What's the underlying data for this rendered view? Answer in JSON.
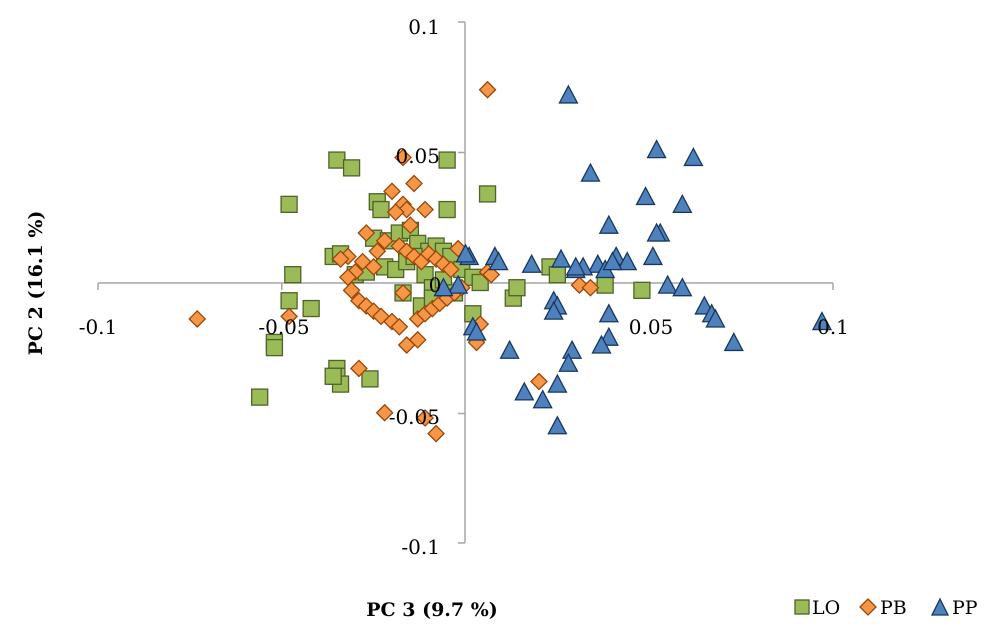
{
  "chart_data": {
    "type": "scatter",
    "xlabel": "PC 3 (9.7 %)",
    "ylabel": "PC 2 (16.1 %)",
    "xlim": [
      -0.1,
      0.1
    ],
    "ylim": [
      -0.1,
      0.1
    ],
    "x_ticks": [
      "-0.1",
      "-0.05",
      "0",
      "0.05",
      "0.1"
    ],
    "y_ticks": [
      "0.1",
      "0.05",
      "0",
      "-0.05",
      "-0.1"
    ],
    "grid": false,
    "legend_position": "bottom-right",
    "series": [
      {
        "name": "LO",
        "marker": "square",
        "color": "#9bbb59",
        "edge_color": "#4f6228",
        "x": [
          -0.035,
          -0.031,
          -0.005,
          -0.048,
          -0.024,
          -0.023,
          -0.005,
          0.006,
          -0.047,
          -0.048,
          -0.042,
          -0.036,
          -0.034,
          -0.025,
          -0.021,
          -0.018,
          -0.015,
          -0.013,
          -0.01,
          -0.008,
          -0.006,
          -0.004,
          -0.001,
          0.002,
          -0.03,
          -0.027,
          -0.022,
          -0.019,
          -0.016,
          -0.014,
          -0.011,
          -0.009,
          -0.006,
          -0.003,
          0.004,
          -0.052,
          -0.052,
          -0.035,
          -0.035,
          -0.034,
          -0.026,
          -0.036,
          -0.056,
          -0.017,
          -0.012,
          -0.009,
          0.002,
          0.013,
          0.014,
          0.023,
          0.025,
          0.038,
          0.048
        ],
        "y": [
          0.047,
          0.044,
          0.047,
          0.03,
          0.031,
          0.028,
          0.028,
          0.034,
          0.003,
          -0.007,
          -0.01,
          0.01,
          0.011,
          0.017,
          0.016,
          0.019,
          0.02,
          0.015,
          0.012,
          0.014,
          0.012,
          0.01,
          0.005,
          0.002,
          0.003,
          0.004,
          0.006,
          0.005,
          0.008,
          0.01,
          0.003,
          -0.002,
          0.001,
          -0.004,
          0.0,
          -0.023,
          -0.025,
          -0.033,
          -0.036,
          -0.039,
          -0.037,
          -0.036,
          -0.044,
          -0.004,
          -0.009,
          -0.006,
          -0.012,
          -0.006,
          -0.002,
          0.006,
          0.003,
          -0.001,
          -0.003
        ]
      },
      {
        "name": "PB",
        "marker": "diamond",
        "color": "#f79646",
        "edge_color": "#984807",
        "x": [
          0.006,
          -0.017,
          -0.014,
          -0.02,
          -0.017,
          -0.016,
          -0.019,
          -0.015,
          -0.011,
          -0.027,
          -0.022,
          -0.018,
          -0.016,
          -0.014,
          -0.012,
          -0.01,
          -0.008,
          -0.006,
          -0.004,
          -0.002,
          -0.024,
          -0.028,
          -0.03,
          -0.032,
          -0.031,
          -0.029,
          -0.027,
          -0.025,
          -0.023,
          -0.02,
          -0.018,
          -0.013,
          -0.011,
          -0.009,
          -0.007,
          -0.005,
          -0.003,
          -0.001,
          -0.025,
          -0.032,
          -0.034,
          -0.048,
          -0.073,
          -0.013,
          -0.016,
          -0.029,
          -0.022,
          -0.011,
          -0.008,
          0.003,
          0.004,
          0.02,
          -0.017,
          0.006,
          0.007,
          0.031,
          0.034
        ],
        "y": [
          0.074,
          0.048,
          0.038,
          0.035,
          0.03,
          0.028,
          0.027,
          0.022,
          0.028,
          0.019,
          0.016,
          0.014,
          0.012,
          0.01,
          0.008,
          0.011,
          0.009,
          0.007,
          0.005,
          0.013,
          0.012,
          0.008,
          0.004,
          0.002,
          -0.003,
          -0.007,
          -0.009,
          -0.011,
          -0.013,
          -0.015,
          -0.017,
          -0.014,
          -0.012,
          -0.01,
          -0.008,
          -0.006,
          -0.004,
          -0.002,
          0.006,
          0.01,
          0.009,
          -0.013,
          -0.014,
          -0.022,
          -0.024,
          -0.033,
          -0.05,
          -0.052,
          -0.058,
          -0.023,
          -0.016,
          -0.038,
          -0.004,
          0.004,
          0.003,
          -0.001,
          -0.002
        ]
      },
      {
        "name": "PP",
        "marker": "triangle",
        "color": "#4f81bd",
        "edge_color": "#17375e",
        "x": [
          0.028,
          0.052,
          0.062,
          0.049,
          0.059,
          0.039,
          0.041,
          0.036,
          0.038,
          0.018,
          0.03,
          0.032,
          0.044,
          0.04,
          0.051,
          0.053,
          0.052,
          0.055,
          0.059,
          0.065,
          0.067,
          0.068,
          0.097,
          0.073,
          0.024,
          0.025,
          0.024,
          0.039,
          0.039,
          0.037,
          0.029,
          0.028,
          0.025,
          0.021,
          0.016,
          0.012,
          0.025,
          0.026,
          0.03,
          0.008,
          0.001,
          0.0,
          -0.002,
          -0.006,
          0.034,
          0.009,
          0.002,
          0.003
        ],
        "y": [
          0.072,
          0.051,
          0.048,
          0.033,
          0.03,
          0.022,
          0.01,
          0.007,
          0.005,
          0.007,
          0.005,
          0.006,
          0.008,
          0.008,
          0.01,
          0.019,
          0.019,
          -0.001,
          -0.002,
          -0.009,
          -0.012,
          -0.014,
          -0.015,
          -0.023,
          -0.007,
          -0.009,
          -0.011,
          -0.012,
          -0.021,
          -0.024,
          -0.026,
          -0.031,
          -0.039,
          -0.045,
          -0.042,
          -0.026,
          -0.055,
          0.009,
          0.006,
          0.01,
          0.01,
          0.011,
          -0.001,
          -0.002,
          0.042,
          0.008,
          -0.017,
          -0.019
        ]
      }
    ]
  }
}
